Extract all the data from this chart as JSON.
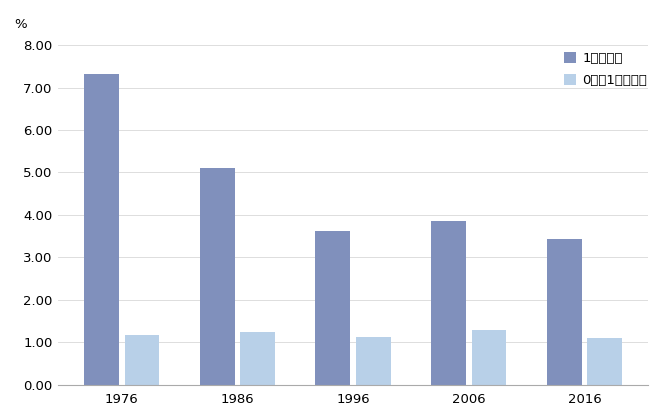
{
  "years": [
    "1976",
    "1986",
    "1996",
    "2006",
    "2016"
  ],
  "series1_values": [
    7.33,
    5.1,
    3.62,
    3.85,
    3.43
  ],
  "series2_values": [
    1.18,
    1.24,
    1.13,
    1.3,
    1.1
  ],
  "series1_label": "1時間以上",
  "series2_label": "0分超1時間未満",
  "series1_color": "#8090bc",
  "series2_color": "#b8d0e8",
  "ylabel": "%",
  "ylim": [
    0.0,
    8.0
  ],
  "yticks": [
    0.0,
    1.0,
    2.0,
    3.0,
    4.0,
    5.0,
    6.0,
    7.0,
    8.0
  ],
  "bar_width": 0.3,
  "background_color": "#ffffff",
  "tick_fontsize": 9.5,
  "legend_fontsize": 9.5,
  "ylabel_fontsize": 9.5
}
